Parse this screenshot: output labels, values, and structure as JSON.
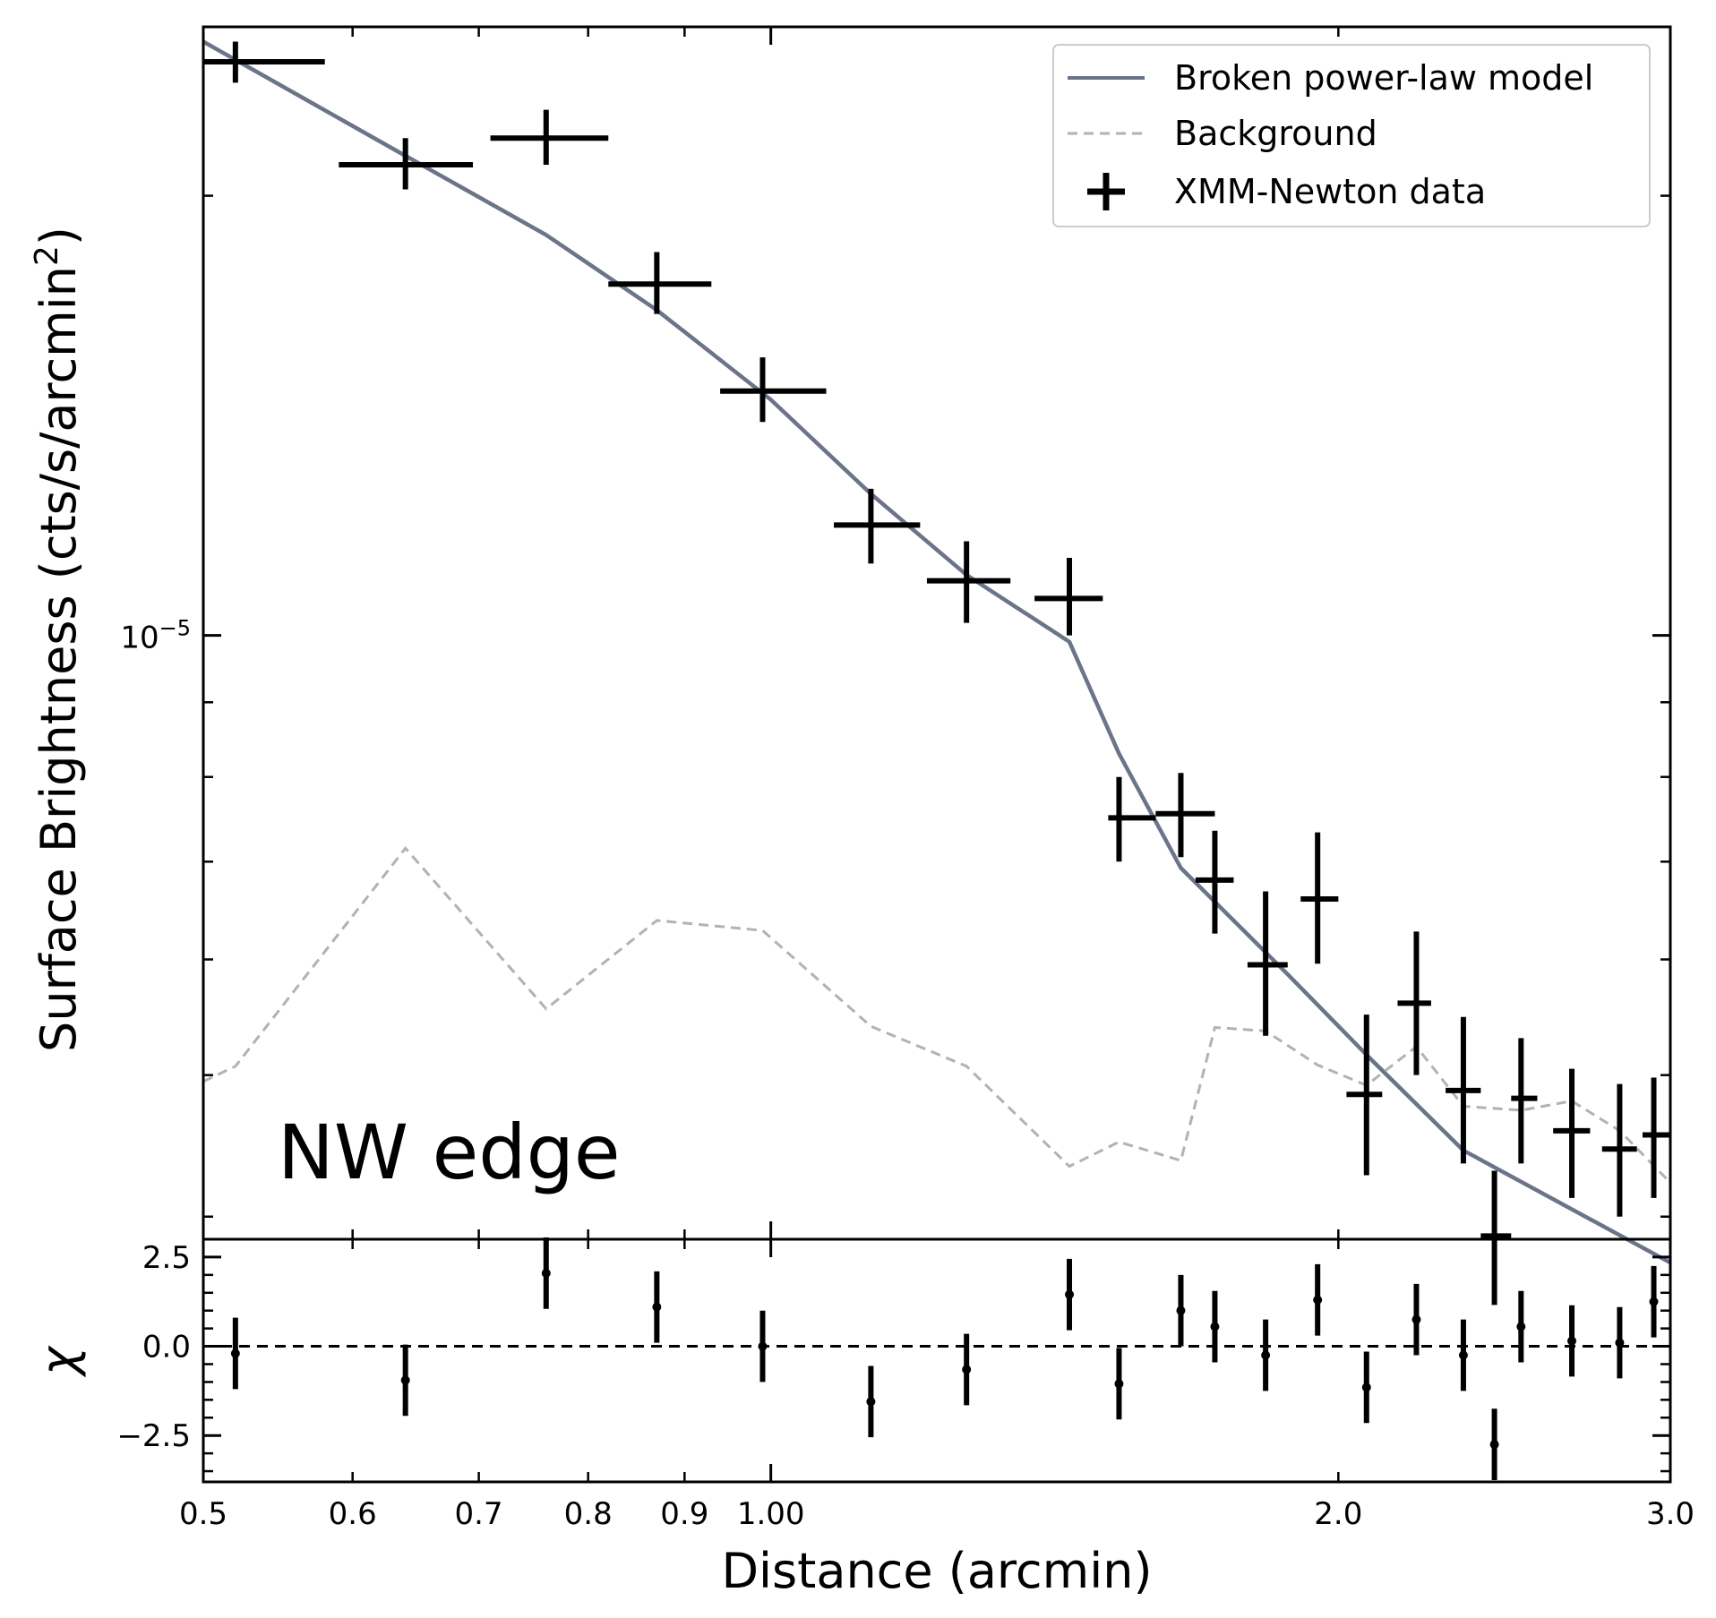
{
  "chart_data": [
    {
      "panel": "main",
      "type": "line",
      "xscale": "log",
      "yscale": "log",
      "xlim": [
        0.5,
        3.0
      ],
      "ylim": [
        3.86e-06,
        2.61e-05
      ],
      "ylabel_text": "Surface Brightness (cts/s/arcmin",
      "ylabel_sup": "2",
      "ylabel_end": ")",
      "ytick_label": {
        "base": "10",
        "exp": "−5",
        "value": 1e-05
      },
      "annotation": "NW edge",
      "legend": {
        "placement": "upper right",
        "entries": {
          "model": "Broken power-law model",
          "background": "Background",
          "data": "XMM-Newton data"
        }
      },
      "colors": {
        "model": "#6b7489",
        "background": "#b2b2b2",
        "data": "#000000"
      },
      "series": [
        {
          "name": "Broken power-law model",
          "style": "solid",
          "x": [
            0.5,
            0.64,
            0.76,
            0.87,
            1.0,
            1.13,
            1.27,
            1.44,
            1.53,
            1.65,
            1.88,
            2.08,
            2.33,
            3.0
          ],
          "y": [
            2.55e-05,
            2.13e-05,
            1.88e-05,
            1.67e-05,
            1.45e-05,
            1.25e-05,
            1.1e-05,
            9.9e-06,
            8.3e-06,
            6.93e-06,
            5.86e-06,
            5.13e-06,
            4.44e-06,
            3.72e-06
          ]
        },
        {
          "name": "Background",
          "style": "dashed",
          "x": [
            0.5,
            0.52,
            0.64,
            0.76,
            0.87,
            0.99,
            1.13,
            1.27,
            1.44,
            1.53,
            1.65,
            1.72,
            1.83,
            1.95,
            2.07,
            2.2,
            2.33,
            2.5,
            2.66,
            2.82,
            3.0
          ],
          "y": [
            4.95e-06,
            5.07e-06,
            7.15e-06,
            5.55e-06,
            6.38e-06,
            6.28e-06,
            5.4e-06,
            5.07e-06,
            4.33e-06,
            4.5e-06,
            4.37e-06,
            5.39e-06,
            5.36e-06,
            5.08e-06,
            4.92e-06,
            5.23e-06,
            4.76e-06,
            4.73e-06,
            4.8e-06,
            4.58e-06,
            4.22e-06
          ]
        },
        {
          "name": "XMM-Newton data",
          "style": "errorbar",
          "points": [
            {
              "x": 0.52,
              "xlo": 0.5,
              "xhi": 0.58,
              "y": 2.47e-05,
              "ylo": 2.39e-05,
              "yhi": 2.55e-05
            },
            {
              "x": 0.64,
              "xlo": 0.59,
              "xhi": 0.695,
              "y": 2.1e-05,
              "ylo": 2.02e-05,
              "yhi": 2.19e-05
            },
            {
              "x": 0.76,
              "xlo": 0.71,
              "xhi": 0.82,
              "y": 2.19e-05,
              "ylo": 2.1e-05,
              "yhi": 2.29e-05
            },
            {
              "x": 0.87,
              "xlo": 0.82,
              "xhi": 0.93,
              "y": 1.74e-05,
              "ylo": 1.66e-05,
              "yhi": 1.83e-05
            },
            {
              "x": 0.99,
              "xlo": 0.94,
              "xhi": 1.07,
              "y": 1.47e-05,
              "ylo": 1.4e-05,
              "yhi": 1.55e-05
            },
            {
              "x": 1.13,
              "xlo": 1.08,
              "xhi": 1.2,
              "y": 1.19e-05,
              "ylo": 1.12e-05,
              "yhi": 1.26e-05
            },
            {
              "x": 1.27,
              "xlo": 1.21,
              "xhi": 1.34,
              "y": 1.09e-05,
              "ylo": 1.02e-05,
              "yhi": 1.16e-05
            },
            {
              "x": 1.44,
              "xlo": 1.38,
              "xhi": 1.5,
              "y": 1.06e-05,
              "ylo": 1e-05,
              "yhi": 1.13e-05
            },
            {
              "x": 1.53,
              "xlo": 1.51,
              "xhi": 1.6,
              "y": 7.5e-06,
              "ylo": 7e-06,
              "yhi": 8e-06
            },
            {
              "x": 1.65,
              "xlo": 1.6,
              "xhi": 1.72,
              "y": 7.55e-06,
              "ylo": 7.05e-06,
              "yhi": 8.05e-06
            },
            {
              "x": 1.72,
              "xlo": 1.68,
              "xhi": 1.76,
              "y": 6.8e-06,
              "ylo": 6.25e-06,
              "yhi": 7.35e-06
            },
            {
              "x": 1.83,
              "xlo": 1.79,
              "xhi": 1.88,
              "y": 5.95e-06,
              "ylo": 5.32e-06,
              "yhi": 6.68e-06
            },
            {
              "x": 1.95,
              "xlo": 1.91,
              "xhi": 2.0,
              "y": 6.6e-06,
              "ylo": 5.96e-06,
              "yhi": 7.33e-06
            },
            {
              "x": 2.07,
              "xlo": 2.02,
              "xhi": 2.11,
              "y": 4.85e-06,
              "ylo": 4.27e-06,
              "yhi": 5.5e-06
            },
            {
              "x": 2.2,
              "xlo": 2.15,
              "xhi": 2.24,
              "y": 5.6e-06,
              "ylo": 5e-06,
              "yhi": 6.27e-06
            },
            {
              "x": 2.33,
              "xlo": 2.28,
              "xhi": 2.38,
              "y": 4.88e-06,
              "ylo": 4.35e-06,
              "yhi": 5.48e-06
            },
            {
              "x": 2.42,
              "xlo": 2.38,
              "xhi": 2.47,
              "y": 3.88e-06,
              "ylo": 3.48e-06,
              "yhi": 4.3e-06
            },
            {
              "x": 2.5,
              "xlo": 2.47,
              "xhi": 2.55,
              "y": 4.82e-06,
              "ylo": 4.35e-06,
              "yhi": 5.3e-06
            },
            {
              "x": 2.66,
              "xlo": 2.6,
              "xhi": 2.72,
              "y": 4.58e-06,
              "ylo": 4.12e-06,
              "yhi": 5.05e-06
            },
            {
              "x": 2.82,
              "xlo": 2.76,
              "xhi": 2.88,
              "y": 4.45e-06,
              "ylo": 4e-06,
              "yhi": 4.93e-06
            },
            {
              "x": 2.94,
              "xlo": 2.9,
              "xhi": 3.0,
              "y": 4.55e-06,
              "ylo": 4.12e-06,
              "yhi": 4.98e-06
            }
          ]
        }
      ]
    },
    {
      "panel": "residuals",
      "type": "scatter",
      "xscale": "log",
      "xlim": [
        0.5,
        3.0
      ],
      "ylim": [
        -3.8,
        3.0
      ],
      "ylabel": "χ",
      "xlabel": "Distance (arcmin)",
      "reference_line": 0.0,
      "yticks": [
        {
          "value": 2.5,
          "label": "2.5"
        },
        {
          "value": 0.0,
          "label": "0.0"
        },
        {
          "value": -2.5,
          "label": "−2.5"
        }
      ],
      "xticks": [
        {
          "value": 0.5,
          "label": "0.5"
        },
        {
          "value": 0.6,
          "label": "0.6"
        },
        {
          "value": 0.7,
          "label": "0.7"
        },
        {
          "value": 0.8,
          "label": "0.8"
        },
        {
          "value": 0.9,
          "label": "0.9"
        },
        {
          "value": 1.0,
          "label": "1.00"
        },
        {
          "value": 2.0,
          "label": "2.0"
        },
        {
          "value": 3.0,
          "label": "3.0"
        }
      ],
      "points": [
        {
          "x": 0.52,
          "y": -0.2,
          "err": 1.0
        },
        {
          "x": 0.64,
          "y": -0.95,
          "err": 1.0
        },
        {
          "x": 0.76,
          "y": 2.05,
          "err": 1.0
        },
        {
          "x": 0.87,
          "y": 1.1,
          "err": 1.0
        },
        {
          "x": 0.99,
          "y": 0.0,
          "err": 1.0
        },
        {
          "x": 1.13,
          "y": -1.55,
          "err": 1.0
        },
        {
          "x": 1.27,
          "y": -0.65,
          "err": 1.0
        },
        {
          "x": 1.44,
          "y": 1.45,
          "err": 1.0
        },
        {
          "x": 1.53,
          "y": -1.05,
          "err": 1.0
        },
        {
          "x": 1.65,
          "y": 1.0,
          "err": 1.0
        },
        {
          "x": 1.72,
          "y": 0.55,
          "err": 1.0
        },
        {
          "x": 1.83,
          "y": -0.25,
          "err": 1.0
        },
        {
          "x": 1.95,
          "y": 1.3,
          "err": 1.0
        },
        {
          "x": 2.07,
          "y": -1.15,
          "err": 1.0
        },
        {
          "x": 2.2,
          "y": 0.75,
          "err": 1.0
        },
        {
          "x": 2.33,
          "y": -0.25,
          "err": 1.0
        },
        {
          "x": 2.42,
          "y": -2.75,
          "err": 1.0
        },
        {
          "x": 2.5,
          "y": 0.55,
          "err": 1.0
        },
        {
          "x": 2.66,
          "y": 0.15,
          "err": 1.0
        },
        {
          "x": 2.82,
          "y": 0.1,
          "err": 1.0
        },
        {
          "x": 2.94,
          "y": 1.25,
          "err": 1.0
        }
      ]
    }
  ]
}
